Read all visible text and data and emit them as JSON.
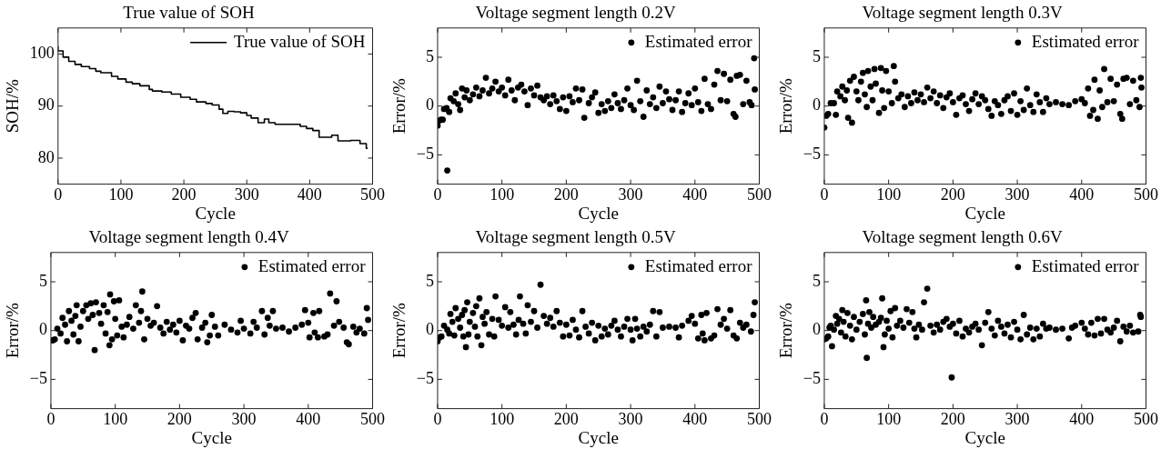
{
  "chart_data": [
    {
      "type": "step",
      "title": "True value of SOH",
      "xlabel": "Cycle",
      "ylabel": "SOH/%",
      "xlim": [
        0,
        500
      ],
      "xticks": [
        0,
        100,
        200,
        300,
        400,
        500
      ],
      "ylim": [
        75,
        105
      ],
      "yticks": [
        80,
        90,
        100
      ],
      "grid": false,
      "legend": "top right",
      "marker": "none",
      "series": [
        {
          "name": "True value of SOH",
          "color": "#000000",
          "x": [
            0,
            8,
            17,
            27,
            37,
            50,
            60,
            68,
            85,
            95,
            108,
            118,
            130,
            145,
            150,
            165,
            180,
            195,
            210,
            220,
            235,
            245,
            256,
            262,
            270,
            280,
            290,
            300,
            307,
            318,
            328,
            335,
            345,
            385,
            395,
            405,
            415,
            435,
            445,
            465,
            480,
            490,
            492
          ],
          "values": [
            101.5,
            100.6,
            99.4,
            98.6,
            98,
            97.6,
            97.2,
            96.7,
            96.4,
            95.7,
            95.2,
            94.6,
            94.3,
            93.9,
            93.2,
            92.9,
            92.7,
            92.3,
            91.7,
            91.3,
            90.8,
            90.5,
            90.2,
            89.4,
            88.6,
            89,
            88.9,
            88.7,
            88.2,
            87.7,
            86.8,
            87.5,
            86.8,
            86.5,
            86.1,
            85.7,
            85.3,
            84,
            84.4,
            83.3,
            83.4,
            82.8,
            81.9
          ]
        }
      ]
    },
    {
      "type": "scatter",
      "title": "Voltage segment length 0.2V",
      "xlabel": "Cycle",
      "ylabel": "Error/%",
      "xlim": [
        0,
        500
      ],
      "xticks": [
        0,
        100,
        200,
        300,
        400,
        500
      ],
      "ylim": [
        -8,
        8
      ],
      "yticks": [
        -5,
        0,
        5
      ],
      "grid": false,
      "legend": "top right",
      "marker": "circle",
      "series": [
        {
          "name": "Estimated error",
          "color": "#000000",
          "x": [
            0,
            2,
            5,
            8,
            10,
            15,
            14,
            18,
            20,
            25,
            28,
            32,
            35,
            38,
            42,
            45,
            50,
            55,
            60,
            65,
            70,
            75,
            80,
            85,
            90,
            95,
            100,
            105,
            110,
            115,
            120,
            125,
            130,
            135,
            140,
            145,
            150,
            155,
            160,
            165,
            170,
            175,
            180,
            185,
            190,
            195,
            200,
            205,
            210,
            215,
            220,
            225,
            228,
            235,
            240,
            245,
            250,
            255,
            260,
            265,
            270,
            275,
            280,
            285,
            290,
            295,
            300,
            305,
            310,
            315,
            320,
            325,
            330,
            335,
            340,
            345,
            350,
            355,
            360,
            365,
            370,
            375,
            380,
            385,
            390,
            395,
            400,
            405,
            410,
            415,
            420,
            425,
            430,
            435,
            440,
            445,
            450,
            455,
            460,
            463,
            465,
            470,
            475,
            480,
            485,
            488,
            492,
            493
          ],
          "values": [
            -2.0,
            -1.5,
            -1.4,
            -1.4,
            -0.3,
            -6.6,
            -0.2,
            -0.6,
            0.8,
            0.5,
            1.3,
            0.2,
            -0.4,
            1.8,
            0.9,
            1.6,
            0.6,
            1.2,
            1.9,
            1.0,
            1.6,
            2.9,
            1.3,
            1.8,
            2.5,
            1.5,
            1.9,
            1.1,
            2.7,
            1.6,
            0.6,
            1.9,
            2.2,
            1.5,
            0.1,
            1.8,
            1.1,
            2.1,
            0.9,
            0.6,
            1.0,
            0.2,
            1.1,
            0.5,
            -0.3,
            0.9,
            -0.5,
            1.0,
            0.4,
            1.8,
            0.6,
            1.7,
            -1.2,
            0.3,
            0.9,
            1.4,
            -0.7,
            0.2,
            -0.5,
            0.5,
            -0.2,
            1.2,
            0.3,
            -0.3,
            0.6,
            1.8,
            0.1,
            -0.4,
            2.6,
            0.5,
            -1.1,
            1.6,
            0.2,
            0.9,
            -0.2,
            2.0,
            0.3,
            1.5,
            0.7,
            -0.4,
            0.6,
            1.5,
            -0.6,
            0.3,
            1.3,
            0.1,
            1.8,
            0.4,
            -0.5,
            2.8,
            0.2,
            -0.3,
            2.2,
            3.6,
            0.6,
            3.3,
            0.5,
            2.7,
            -0.8,
            -1.1,
            3.1,
            3.2,
            0.2,
            2.6,
            0.4,
            0.1,
            4.9,
            1.7
          ]
        }
      ]
    },
    {
      "type": "scatter",
      "title": "Voltage segment length 0.3V",
      "xlabel": "Cycle",
      "ylabel": "Error/%",
      "xlim": [
        0,
        500
      ],
      "xticks": [
        0,
        100,
        200,
        300,
        400,
        500
      ],
      "ylim": [
        -8,
        8
      ],
      "yticks": [
        -5,
        0,
        5
      ],
      "grid": false,
      "legend": "top right",
      "marker": "circle",
      "series": [
        {
          "name": "Estimated error",
          "color": "#000000",
          "x": [
            0,
            3,
            6,
            10,
            15,
            18,
            20,
            25,
            28,
            32,
            35,
            37,
            40,
            43,
            46,
            50,
            53,
            57,
            60,
            63,
            66,
            68,
            72,
            75,
            78,
            80,
            85,
            88,
            90,
            93,
            96,
            100,
            105,
            108,
            110,
            115,
            120,
            125,
            130,
            135,
            140,
            145,
            150,
            155,
            160,
            165,
            170,
            175,
            180,
            185,
            190,
            195,
            200,
            205,
            210,
            215,
            220,
            225,
            230,
            235,
            240,
            245,
            250,
            255,
            260,
            265,
            270,
            275,
            280,
            285,
            290,
            295,
            300,
            305,
            310,
            315,
            320,
            325,
            330,
            335,
            340,
            345,
            350,
            360,
            370,
            380,
            390,
            400,
            405,
            410,
            413,
            418,
            420,
            425,
            428,
            432,
            435,
            440,
            445,
            450,
            455,
            460,
            463,
            465,
            470,
            475,
            480,
            485,
            490,
            492,
            493
          ],
          "values": [
            -2.2,
            -1.0,
            -0.8,
            0.3,
            0.3,
            -0.9,
            1.5,
            1.0,
            2.0,
            0.6,
            1.6,
            -1.2,
            2.6,
            -1.7,
            3.0,
            1.5,
            0.6,
            2.5,
            3.4,
            1.2,
            -0.1,
            3.6,
            2.0,
            0.6,
            3.8,
            2.3,
            -0.7,
            3.9,
            1.6,
            -0.2,
            3.6,
            1.5,
            0.3,
            4.1,
            2.5,
            0.8,
            1.2,
            -0.1,
            1.0,
            0.3,
            1.4,
            0.6,
            1.2,
            0.4,
            1.9,
            0.8,
            1.5,
            0.3,
            1.1,
            -0.2,
            0.9,
            1.3,
            0.4,
            -0.9,
            0.8,
            1.1,
            0.2,
            -0.5,
            0.7,
            1.3,
            0.2,
            1.0,
            0.6,
            -0.3,
            -1.0,
            0.5,
            0.1,
            -0.8,
            0.6,
            1.0,
            -0.5,
            1.3,
            -0.9,
            0.5,
            -0.4,
            1.8,
            0.1,
            -0.6,
            1.2,
            0.4,
            -0.6,
            0.8,
            0.2,
            0.4,
            0.2,
            0.1,
            0.5,
            0.7,
            0.3,
            1.8,
            -1.0,
            -0.4,
            2.7,
            -1.3,
            1.6,
            -0.1,
            3.8,
            0.4,
            2.8,
            0.5,
            2.2,
            -0.8,
            -1.3,
            2.8,
            2.9,
            0.2,
            2.6,
            0.6,
            -0.1,
            2.9,
            1.9
          ]
        }
      ]
    },
    {
      "type": "scatter",
      "title": "Voltage segment length 0.4V",
      "xlabel": "Cycle",
      "ylabel": "Error/%",
      "xlim": [
        0,
        500
      ],
      "xticks": [
        0,
        100,
        200,
        300,
        400,
        500
      ],
      "ylim": [
        -8,
        8
      ],
      "yticks": [
        -5,
        0,
        5
      ],
      "grid": false,
      "legend": "top right",
      "marker": "circle",
      "series": [
        {
          "name": "Estimated error",
          "color": "#000000",
          "x": [
            0,
            3,
            6,
            10,
            15,
            18,
            22,
            25,
            28,
            32,
            35,
            38,
            40,
            43,
            46,
            50,
            55,
            58,
            62,
            65,
            68,
            70,
            75,
            78,
            82,
            85,
            88,
            91,
            92,
            95,
            98,
            100,
            103,
            106,
            110,
            113,
            118,
            122,
            128,
            132,
            137,
            140,
            142,
            145,
            150,
            155,
            160,
            165,
            170,
            175,
            180,
            185,
            190,
            195,
            200,
            205,
            210,
            215,
            220,
            225,
            228,
            235,
            240,
            243,
            247,
            250,
            255,
            260,
            270,
            280,
            290,
            295,
            300,
            310,
            315,
            320,
            328,
            332,
            337,
            340,
            345,
            350,
            360,
            370,
            380,
            390,
            395,
            400,
            402,
            408,
            410,
            415,
            417,
            425,
            430,
            434,
            440,
            444,
            448,
            455,
            460,
            463,
            470,
            475,
            480,
            487,
            491,
            493
          ],
          "values": [
            -1.0,
            -1.0,
            -0.9,
            0.2,
            -0.3,
            1.3,
            0.6,
            -1.1,
            2.0,
            1.0,
            -0.4,
            1.5,
            2.6,
            -1.1,
            0.4,
            2.0,
            2.6,
            1.2,
            2.8,
            1.6,
            -2.0,
            2.9,
            1.8,
            0.7,
            2.6,
            -0.3,
            1.9,
            -1.5,
            3.7,
            -0.9,
            3.0,
            1.2,
            -0.5,
            3.1,
            0.4,
            -0.7,
            0.6,
            1.4,
            0.2,
            2.6,
            0.8,
            2.0,
            4.0,
            -0.9,
            1.2,
            0.5,
            0.8,
            2.5,
            0.3,
            -0.3,
            0.9,
            0.1,
            0.6,
            -0.2,
            1.0,
            -1.0,
            0.5,
            0.2,
            1.3,
            1.8,
            -0.9,
            0.3,
            0.8,
            -1.2,
            -0.5,
            1.6,
            0.4,
            -0.5,
            0.6,
            0.1,
            -0.2,
            1.0,
            0.2,
            -0.3,
            0.9,
            0.3,
            2.0,
            -0.4,
            1.3,
            0.5,
            2.0,
            0.2,
            0.3,
            -0.1,
            0.3,
            0.6,
            2.1,
            0.8,
            -0.7,
            1.8,
            -0.2,
            -0.7,
            2.0,
            -0.6,
            -0.4,
            3.8,
            0.5,
            3.0,
            0.9,
            0.3,
            -1.2,
            -1.4,
            0.4,
            -0.2,
            0.2,
            -0.3,
            2.3,
            1.1
          ]
        }
      ]
    },
    {
      "type": "scatter",
      "title": "Voltage segment length 0.5V",
      "xlabel": "Cycle",
      "ylabel": "Error/%",
      "xlim": [
        0,
        500
      ],
      "xticks": [
        0,
        100,
        200,
        300,
        400,
        500
      ],
      "ylim": [
        -8,
        8
      ],
      "yticks": [
        -5,
        0,
        5
      ],
      "grid": false,
      "legend": "top right",
      "marker": "circle",
      "series": [
        {
          "name": "Estimated error",
          "color": "#000000",
          "x": [
            0,
            3,
            6,
            10,
            15,
            18,
            20,
            23,
            26,
            28,
            32,
            35,
            38,
            40,
            42,
            44,
            46,
            48,
            50,
            55,
            58,
            60,
            62,
            65,
            68,
            70,
            73,
            76,
            80,
            85,
            88,
            90,
            95,
            100,
            105,
            110,
            113,
            118,
            122,
            126,
            128,
            133,
            137,
            140,
            145,
            150,
            155,
            160,
            165,
            170,
            175,
            180,
            185,
            190,
            195,
            200,
            205,
            210,
            215,
            220,
            225,
            230,
            235,
            240,
            245,
            250,
            255,
            260,
            265,
            270,
            275,
            280,
            285,
            290,
            295,
            300,
            303,
            307,
            310,
            315,
            320,
            325,
            330,
            335,
            340,
            345,
            350,
            360,
            370,
            375,
            380,
            390,
            395,
            400,
            405,
            410,
            412,
            415,
            418,
            425,
            430,
            435,
            440,
            445,
            450,
            455,
            460,
            465,
            470,
            475,
            480,
            487,
            491,
            493
          ],
          "values": [
            -1.1,
            -0.7,
            -0.6,
            0.5,
            0.1,
            -0.3,
            1.7,
            0.9,
            -0.5,
            2.3,
            1.2,
            0.3,
            1.6,
            -0.6,
            2.1,
            -1.7,
            2.9,
            -0.4,
            0.9,
            1.8,
            0.4,
            2.5,
            -0.6,
            3.3,
            -1.5,
            1.4,
            0.7,
            1.9,
            -0.4,
            1.2,
            -0.6,
            3.5,
            1.1,
            0.5,
            2.4,
            0.3,
            1.9,
            0.6,
            -0.4,
            1.1,
            3.5,
            0.7,
            -0.3,
            2.6,
            0.9,
            2.0,
            0.3,
            4.7,
            1.5,
            0.7,
            1.3,
            0.4,
            2.0,
            0.8,
            -0.6,
            0.6,
            -0.5,
            1.1,
            0.1,
            -0.7,
            2.0,
            0.4,
            -0.3,
            0.8,
            -1.0,
            0.5,
            -0.6,
            0.2,
            -0.4,
            0.5,
            1.0,
            0.1,
            -0.6,
            0.4,
            1.2,
            0.1,
            -1.0,
            1.2,
            0.2,
            -0.6,
            0.4,
            -0.1,
            0.6,
            2.0,
            -0.6,
            1.9,
            0.3,
            0.4,
            0.3,
            -0.7,
            0.5,
            1.0,
            1.5,
            0.7,
            -0.8,
            1.6,
            -0.3,
            -1.0,
            1.8,
            -0.8,
            -0.5,
            2.2,
            0.6,
            1.2,
            0.2,
            2.1,
            -0.5,
            -0.8,
            0.8,
            0.3,
            0.6,
            -0.1,
            1.6,
            2.9
          ]
        }
      ]
    },
    {
      "type": "scatter",
      "title": "Voltage segment length 0.6V",
      "xlabel": "Cycle",
      "ylabel": "Error/%",
      "xlim": [
        0,
        500
      ],
      "xticks": [
        0,
        100,
        200,
        300,
        400,
        500
      ],
      "ylim": [
        -8,
        8
      ],
      "yticks": [
        -5,
        0,
        5
      ],
      "grid": false,
      "legend": "top right",
      "marker": "circle",
      "series": [
        {
          "name": "Estimated error",
          "color": "#000000",
          "x": [
            0,
            3,
            6,
            8,
            10,
            12,
            15,
            18,
            20,
            23,
            26,
            28,
            30,
            33,
            36,
            40,
            43,
            46,
            50,
            55,
            60,
            63,
            65,
            66,
            68,
            70,
            73,
            76,
            80,
            85,
            88,
            90,
            92,
            94,
            97,
            100,
            103,
            106,
            110,
            113,
            118,
            123,
            128,
            132,
            137,
            140,
            143,
            147,
            152,
            155,
            160,
            165,
            170,
            175,
            180,
            185,
            190,
            195,
            198,
            200,
            205,
            210,
            215,
            220,
            225,
            230,
            235,
            240,
            245,
            250,
            255,
            260,
            265,
            270,
            275,
            280,
            285,
            290,
            295,
            300,
            305,
            310,
            315,
            320,
            325,
            330,
            335,
            340,
            345,
            350,
            360,
            370,
            380,
            385,
            390,
            400,
            405,
            410,
            415,
            420,
            425,
            430,
            435,
            440,
            445,
            450,
            455,
            460,
            465,
            470,
            475,
            480,
            488,
            491,
            492
          ],
          "values": [
            -0.9,
            -0.8,
            -0.6,
            0.3,
            0.5,
            -1.6,
            0.1,
            1.5,
            0.7,
            1.2,
            -0.2,
            2.1,
            0.9,
            -0.6,
            1.8,
            0.5,
            -0.9,
            1.4,
            0.1,
            0.9,
            1.7,
            -0.4,
            3.1,
            -2.8,
            0.7,
            1.9,
            0.3,
            1.4,
            0.6,
            0.9,
            1.3,
            3.3,
            -1.7,
            -0.4,
            1.0,
            0.2,
            2.0,
            -0.7,
            2.3,
            0.5,
            1.0,
            0.3,
            2.2,
            0.8,
            1.9,
            0.2,
            -0.7,
            0.6,
            0.1,
            2.9,
            4.3,
            0.5,
            -0.2,
            0.6,
            0.1,
            0.9,
            1.2,
            0.4,
            -4.8,
            0.7,
            -0.3,
            1.0,
            -0.6,
            0.2,
            -0.2,
            0.4,
            0.7,
            0.1,
            -1.5,
            0.8,
            1.9,
            0.2,
            -0.5,
            1.0,
            0.4,
            -0.3,
            0.6,
            -0.7,
            0.9,
            0.1,
            -0.9,
            1.6,
            -0.4,
            0.3,
            -0.9,
            0.2,
            -0.6,
            0.7,
            0.2,
            0.3,
            0.1,
            0.2,
            -0.8,
            0.3,
            0.5,
            0.8,
            0.2,
            -0.4,
            0.8,
            -0.5,
            1.2,
            -0.3,
            1.2,
            0.1,
            -0.2,
            0.3,
            1.0,
            -1.1,
            0.4,
            -0.1,
            0.5,
            -0.2,
            -0.1,
            1.6,
            1.4
          ]
        }
      ]
    }
  ]
}
